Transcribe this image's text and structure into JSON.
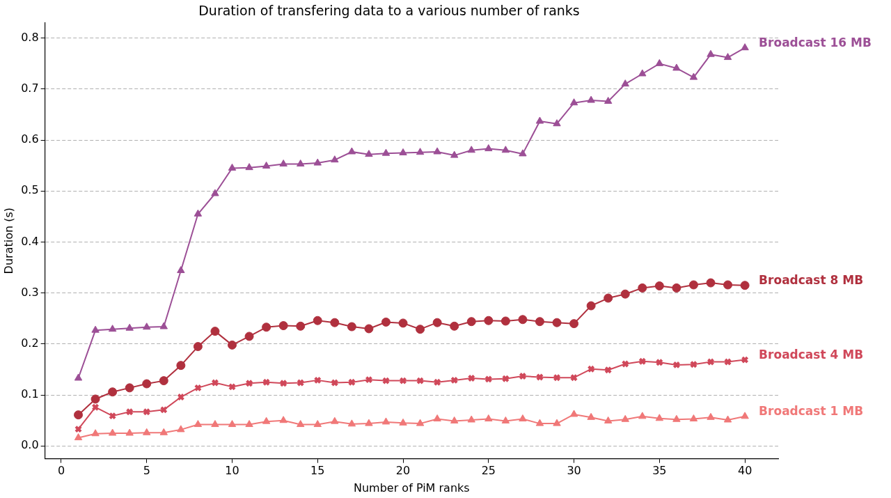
{
  "chart_data": {
    "type": "line",
    "title": "Duration of transfering data to a various number of ranks",
    "xlabel": "Number of PiM ranks",
    "ylabel": "Duration (s)",
    "x": [
      1,
      2,
      3,
      4,
      5,
      6,
      7,
      8,
      9,
      10,
      11,
      12,
      13,
      14,
      15,
      16,
      17,
      18,
      19,
      20,
      21,
      22,
      23,
      24,
      25,
      26,
      27,
      28,
      29,
      30,
      31,
      32,
      33,
      34,
      35,
      36,
      37,
      38,
      39,
      40
    ],
    "xlim": [
      -0.95,
      41.95
    ],
    "xticks": [
      0,
      5,
      10,
      15,
      20,
      25,
      30,
      35,
      40
    ],
    "ylim": [
      -0.025,
      0.83
    ],
    "yticks": [
      {
        "value": 0,
        "label": "0.0"
      },
      0.1,
      0.2,
      0.3,
      0.4,
      0.5,
      0.6,
      0.7,
      0.8
    ],
    "grid": "y",
    "legend": false,
    "series": [
      {
        "name": "Broadcast 16 MB",
        "color": "#9c4f96",
        "marker": "triangle",
        "values": [
          0.133,
          0.227,
          0.229,
          0.231,
          0.233,
          0.234,
          0.344,
          0.455,
          0.495,
          0.545,
          0.546,
          0.549,
          0.553,
          0.553,
          0.555,
          0.561,
          0.577,
          0.572,
          0.574,
          0.575,
          0.576,
          0.577,
          0.57,
          0.58,
          0.583,
          0.58,
          0.573,
          0.637,
          0.632,
          0.673,
          0.678,
          0.676,
          0.71,
          0.73,
          0.75,
          0.741,
          0.723,
          0.768,
          0.762,
          0.781
        ]
      },
      {
        "name": "Broadcast 8 MB",
        "color": "#b0303e",
        "marker": "circle",
        "values": [
          0.061,
          0.092,
          0.106,
          0.114,
          0.122,
          0.128,
          0.158,
          0.195,
          0.225,
          0.198,
          0.215,
          0.233,
          0.236,
          0.235,
          0.246,
          0.242,
          0.234,
          0.23,
          0.243,
          0.241,
          0.229,
          0.242,
          0.235,
          0.244,
          0.246,
          0.245,
          0.248,
          0.244,
          0.242,
          0.24,
          0.275,
          0.29,
          0.298,
          0.31,
          0.314,
          0.31,
          0.316,
          0.32,
          0.316,
          0.315
        ]
      },
      {
        "name": "Broadcast 4 MB",
        "color": "#d0485a",
        "marker": "cross",
        "values": [
          0.033,
          0.076,
          0.059,
          0.067,
          0.067,
          0.071,
          0.096,
          0.114,
          0.124,
          0.116,
          0.123,
          0.125,
          0.123,
          0.124,
          0.129,
          0.124,
          0.125,
          0.13,
          0.128,
          0.128,
          0.128,
          0.125,
          0.129,
          0.133,
          0.131,
          0.132,
          0.137,
          0.135,
          0.134,
          0.134,
          0.151,
          0.149,
          0.161,
          0.166,
          0.164,
          0.159,
          0.16,
          0.165,
          0.165,
          0.169
        ]
      },
      {
        "name": "Broadcast 1 MB",
        "color": "#f07878",
        "marker": "triangle",
        "values": [
          0.016,
          0.024,
          0.025,
          0.025,
          0.026,
          0.026,
          0.032,
          0.042,
          0.042,
          0.042,
          0.042,
          0.048,
          0.05,
          0.042,
          0.042,
          0.048,
          0.043,
          0.044,
          0.047,
          0.045,
          0.044,
          0.053,
          0.049,
          0.051,
          0.053,
          0.049,
          0.053,
          0.044,
          0.044,
          0.062,
          0.056,
          0.049,
          0.052,
          0.058,
          0.054,
          0.052,
          0.053,
          0.056,
          0.051,
          0.058
        ]
      }
    ]
  }
}
